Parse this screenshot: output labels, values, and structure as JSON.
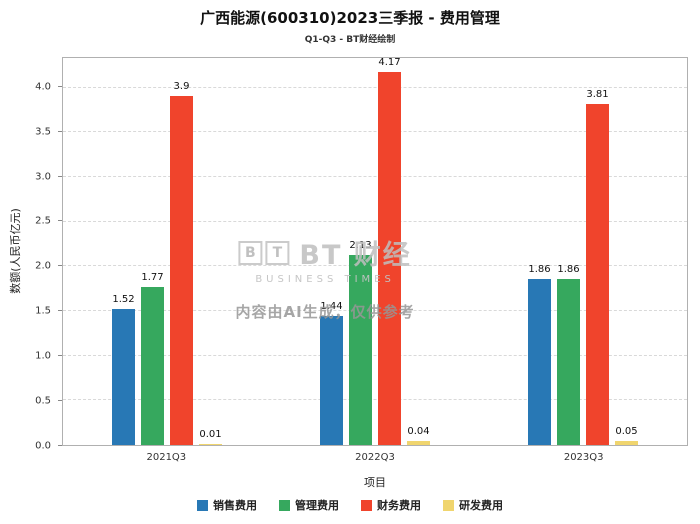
{
  "title": "广西能源(600310)2023三季报 - 费用管理",
  "subtitle": "Q1-Q3 - BT财经绘制",
  "watermark": {
    "logo_b": "B",
    "logo_t": "T",
    "brand": "BT 财经",
    "brand_sub": "BUSINESS TIMES",
    "notice": "内容由AI生成，仅供参考"
  },
  "chart_data": {
    "type": "bar",
    "title": "广西能源(600310)2023三季报 - 费用管理",
    "subtitle": "Q1-Q3 - BT财经绘制",
    "categories": [
      "2021Q3",
      "2022Q3",
      "2023Q3"
    ],
    "series": [
      {
        "name": "销售费用",
        "color": "#2878B5",
        "values": [
          1.52,
          1.44,
          1.86
        ]
      },
      {
        "name": "管理费用",
        "color": "#36A85E",
        "values": [
          1.77,
          2.13,
          1.86
        ]
      },
      {
        "name": "财务费用",
        "color": "#F0442C",
        "values": [
          3.9,
          4.17,
          3.81
        ]
      },
      {
        "name": "研发费用",
        "color": "#F0D56E",
        "values": [
          0.01,
          0.04,
          0.05
        ]
      }
    ],
    "xlabel": "项目",
    "ylabel": "数额(人民币亿元)",
    "ylim": [
      0,
      4.33
    ],
    "yticks": [
      0.0,
      0.5,
      1.0,
      1.5,
      2.0,
      2.5,
      3.0,
      3.5,
      4.0
    ],
    "grid": true,
    "grid_style": "dashed",
    "legend_position": "bottom"
  }
}
